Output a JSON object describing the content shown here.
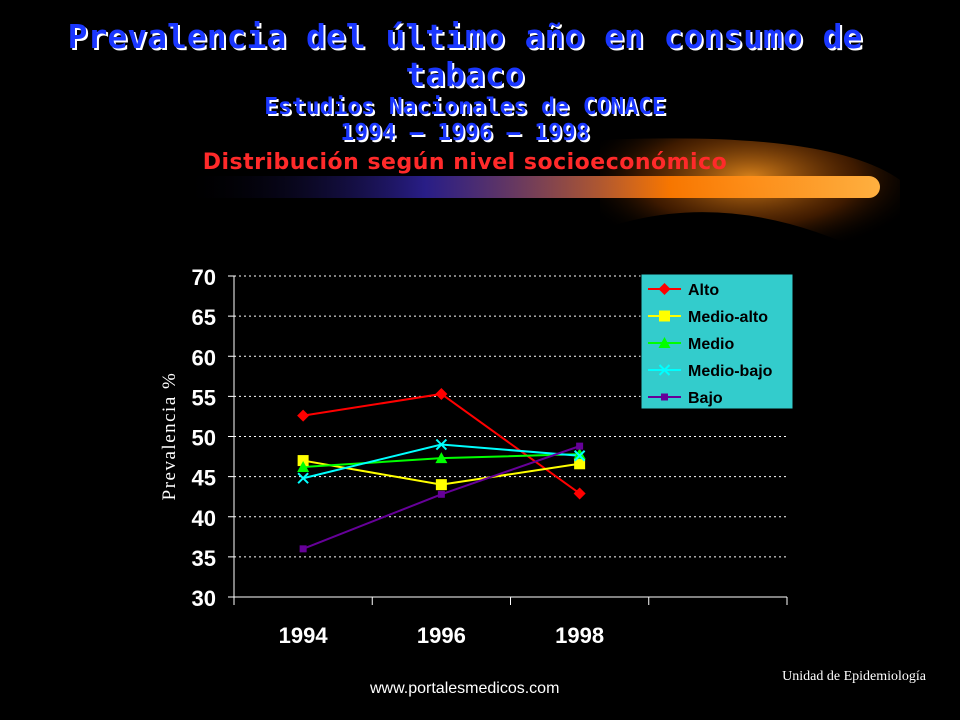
{
  "header": {
    "title": "Prevalencia del último año en consumo de tabaco",
    "subtitle": "Estudios Nacionales de CONACE",
    "years": "1994 – 1996 – 1998",
    "distribution": "Distribución según nivel socioeconómico"
  },
  "footer": {
    "url": "www.portalesmedicos.com",
    "unit": "Unidad de Epidemiología"
  },
  "colors": {
    "background": "#000000",
    "title": "#1a37ff",
    "distribution": "#ff2a2a",
    "legend_bg": "#33cccc",
    "gridline": "#ffffff"
  },
  "chart_data": {
    "type": "line",
    "title": "",
    "xlabel": "",
    "ylabel": "Prevalencia %",
    "categories": [
      "1994",
      "1996",
      "1998"
    ],
    "yticks": [
      "30",
      "35",
      "40",
      "45",
      "50",
      "55",
      "60",
      "65",
      "70"
    ],
    "ylim": [
      30,
      70
    ],
    "grid": true,
    "legend_position": "top-right",
    "series": [
      {
        "name": "Alto",
        "color": "#ff0000",
        "marker": "diamond",
        "values": [
          52.6,
          55.3,
          42.9
        ]
      },
      {
        "name": "Medio-alto",
        "color": "#ffff00",
        "marker": "square",
        "values": [
          47.0,
          44.0,
          46.6
        ]
      },
      {
        "name": "Medio",
        "color": "#00ff00",
        "marker": "triangle",
        "values": [
          46.2,
          47.3,
          47.8
        ]
      },
      {
        "name": "Medio-bajo",
        "color": "#00ffff",
        "marker": "x",
        "values": [
          44.8,
          49.0,
          47.6
        ]
      },
      {
        "name": "Bajo",
        "color": "#660099",
        "marker": "square-small",
        "values": [
          36.0,
          42.8,
          48.8
        ]
      }
    ]
  }
}
